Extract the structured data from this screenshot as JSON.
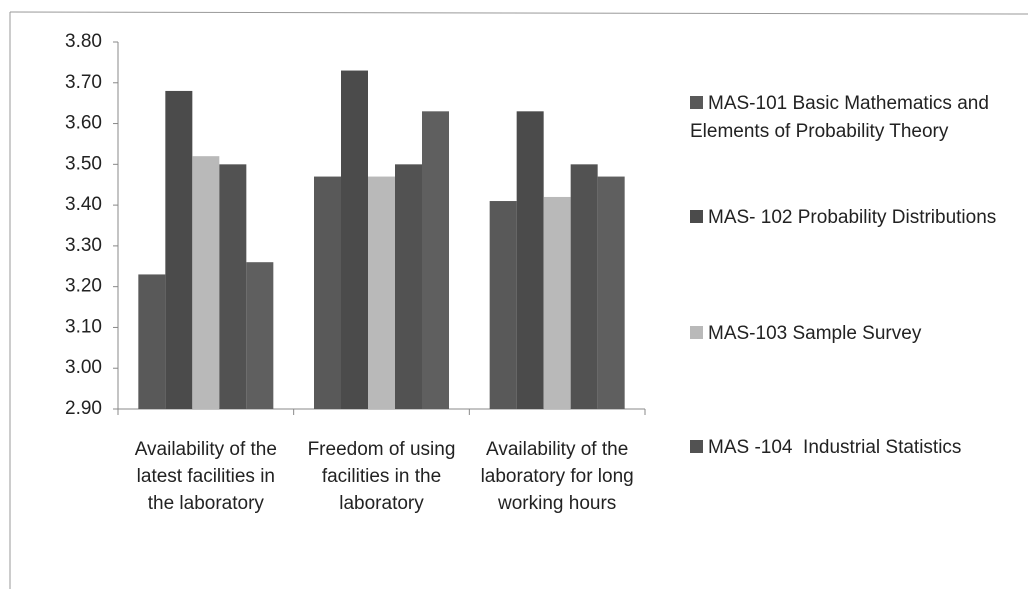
{
  "chart_data": {
    "type": "bar",
    "categories": [
      "Availability of the latest facilities in the laboratory",
      "Freedom of using facilities in the laboratory",
      "Availability of the laboratory for long working hours"
    ],
    "series": [
      {
        "name": "MAS-101 Basic Mathematics and Elements of Probability Theory",
        "color": "#595959",
        "values": [
          3.23,
          3.47,
          3.41
        ]
      },
      {
        "name": "MAS- 102 Probability Distributions",
        "color": "#4b4b4b",
        "values": [
          3.68,
          3.73,
          3.63
        ]
      },
      {
        "name": "MAS-103 Sample Survey",
        "color": "#b9b9b9",
        "values": [
          3.52,
          3.47,
          3.42
        ]
      },
      {
        "name": "MAS -104  Industrial Statistics",
        "color": "#525252",
        "values": [
          3.5,
          3.5,
          3.5
        ]
      },
      {
        "color": "#5f5f5f",
        "values": [
          3.26,
          3.63,
          3.47
        ]
      }
    ],
    "ylim": [
      2.9,
      3.8
    ],
    "yticks": [
      {
        "value": 2.9,
        "label": "2.90"
      },
      {
        "value": 3.0,
        "label": "3.00"
      },
      {
        "value": 3.1,
        "label": "3.10"
      },
      {
        "value": 3.2,
        "label": "3.20"
      },
      {
        "value": 3.3,
        "label": "3.30"
      },
      {
        "value": 3.4,
        "label": "3.40"
      },
      {
        "value": 3.5,
        "label": "3.50"
      },
      {
        "value": 3.6,
        "label": "3.60"
      },
      {
        "value": 3.7,
        "label": "3.70"
      },
      {
        "value": 3.8,
        "label": "3.80"
      }
    ],
    "grid": false
  }
}
